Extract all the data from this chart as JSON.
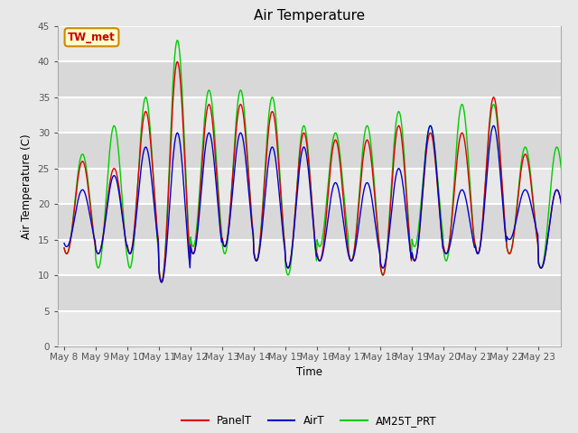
{
  "title": "Air Temperature",
  "ylabel": "Air Temperature (C)",
  "xlabel": "Time",
  "annotation": "TW_met",
  "annotation_color": "#cc0000",
  "annotation_bg": "#ffffcc",
  "annotation_border": "#cc8800",
  "ylim": [
    0,
    45
  ],
  "yticks": [
    0,
    5,
    10,
    15,
    20,
    25,
    30,
    35,
    40,
    45
  ],
  "fig_bg": "#e8e8e8",
  "plot_bg": "#e8e8e8",
  "band_light": "#f0f0f0",
  "band_dark": "#e0e0e0",
  "grid_color": "#ffffff",
  "line_colors": {
    "PanelT": "#dd0000",
    "AirT": "#0000cc",
    "AM25T_PRT": "#00cc00"
  },
  "legend_labels": [
    "PanelT",
    "AirT",
    "AM25T_PRT"
  ],
  "x_tick_labels": [
    "May 8",
    "May 9",
    "May 10",
    "May 11",
    "May 12",
    "May 13",
    "May 14",
    "May 15",
    "May 16",
    "May 17",
    "May 18",
    "May 19",
    "May 20",
    "May 21",
    "May 22",
    "May 23"
  ],
  "num_days": 16
}
